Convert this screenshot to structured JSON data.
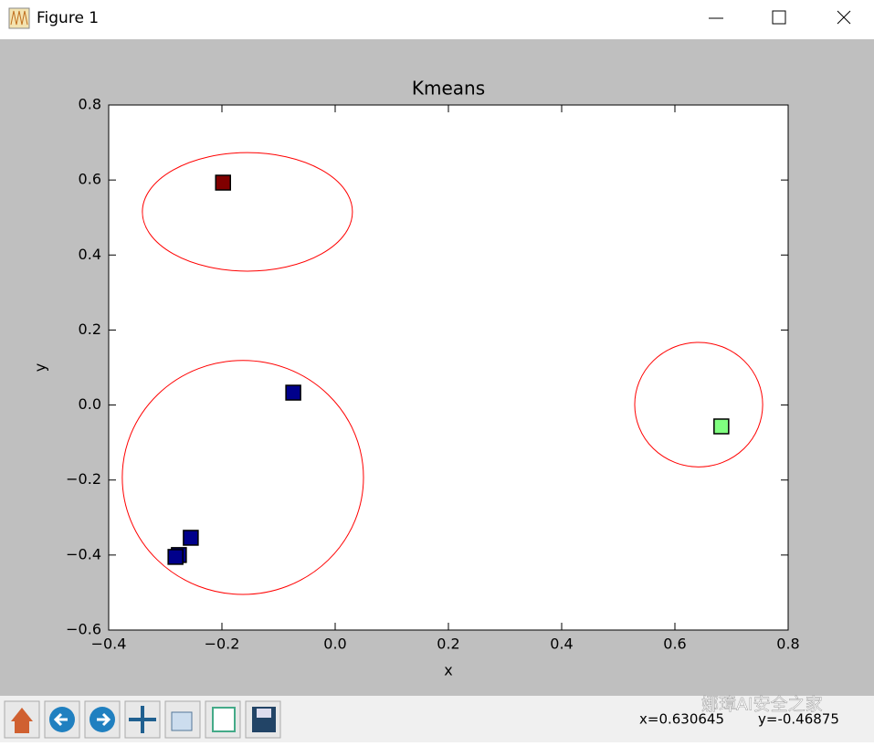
{
  "window": {
    "title": "Figure 1"
  },
  "chart_data": {
    "type": "scatter",
    "title": "Kmeans",
    "x_label": "x",
    "y_label": "y",
    "xlim": [
      -0.4,
      0.8
    ],
    "ylim": [
      -0.6,
      0.8
    ],
    "xticks": [
      {
        "value": -0.4,
        "label": "−0.4"
      },
      {
        "value": -0.2,
        "label": "−0.2"
      },
      {
        "value": 0,
        "label": "0.0"
      },
      {
        "value": 0.2,
        "label": "0.2"
      },
      {
        "value": 0.4,
        "label": "0.4"
      },
      {
        "value": 0.6,
        "label": "0.6"
      },
      {
        "value": 0.8,
        "label": "0.8"
      }
    ],
    "yticks": [
      {
        "value": -0.6,
        "label": "−0.6"
      },
      {
        "value": -0.4,
        "label": "−0.4"
      },
      {
        "value": -0.2,
        "label": "−0.2"
      },
      {
        "value": 0,
        "label": "0.0"
      },
      {
        "value": 0.2,
        "label": "0.2"
      },
      {
        "value": 0.4,
        "label": "0.4"
      },
      {
        "value": 0.6,
        "label": "0.6"
      },
      {
        "value": 0.8,
        "label": "0.8"
      }
    ],
    "grid": false,
    "marker": "square",
    "series": [
      {
        "color": "#800000",
        "x": [
          -0.198
        ],
        "y": [
          0.593
        ]
      },
      {
        "color": "#00008b",
        "x": [
          -0.074,
          -0.255,
          -0.276,
          -0.282
        ],
        "y": [
          0.033,
          -0.354,
          -0.4,
          -0.405
        ]
      },
      {
        "color": "#80ff80",
        "x": [
          0.682
        ],
        "y": [
          -0.057
        ]
      }
    ],
    "ellipses": [
      {
        "color": "#ff0000",
        "x": -0.155,
        "y": 0.515,
        "width": 0.371,
        "height": 0.316
      },
      {
        "color": "#ff0000",
        "x": -0.163,
        "y": -0.193,
        "width": 0.426,
        "height": 0.624
      },
      {
        "color": "#ff0000",
        "x": 0.642,
        "y": 0.001,
        "width": 0.226,
        "height": 0.332
      }
    ]
  },
  "status": {
    "x_text": "x=0.630645",
    "y_text": "y=-0.46875"
  },
  "watermark": "娜璋AI安全之家"
}
